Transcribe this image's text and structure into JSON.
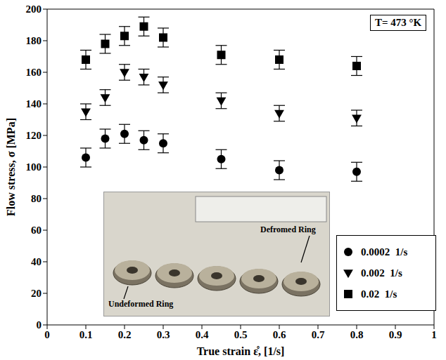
{
  "chart_data": {
    "type": "scatter",
    "x_label": "True strain ε̊, [1/s]",
    "y_label": "Flow stress, σ [MPa]",
    "annotations": [
      {
        "text": "T= 473 °K"
      },
      {
        "text": "Undeformed Ring"
      },
      {
        "text": "Defromed Ring"
      }
    ],
    "x": [
      0.1,
      0.15,
      0.2,
      0.25,
      0.3,
      0.45,
      0.6,
      0.8
    ],
    "series": [
      {
        "name": "0.0002  1/s",
        "marker": "circle",
        "color": "#000000",
        "values": [
          106,
          118,
          121,
          117,
          115,
          105,
          98,
          97
        ],
        "errors": [
          6,
          6,
          6,
          6,
          6,
          6,
          6,
          6
        ]
      },
      {
        "name": "0.002  1/s",
        "marker": "triangle-down",
        "color": "#000000",
        "values": [
          135,
          144,
          160,
          157,
          152,
          142,
          134,
          131
        ],
        "errors": [
          5,
          5,
          5,
          5,
          5,
          5,
          5,
          5
        ]
      },
      {
        "name": "0.02  1/s",
        "marker": "square",
        "color": "#000000",
        "values": [
          168,
          178,
          183,
          189,
          182,
          171,
          168,
          164
        ],
        "errors": [
          6,
          6,
          6,
          6,
          6,
          6,
          6,
          6
        ]
      }
    ],
    "xlim": [
      0,
      1
    ],
    "xticks": [
      0,
      0.1,
      0.2,
      0.3,
      0.4,
      0.5,
      0.6,
      0.7,
      0.8,
      0.9,
      1
    ],
    "ylim": [
      0,
      200
    ],
    "yticks": [
      0,
      20,
      40,
      60,
      80,
      100,
      120,
      140,
      160,
      180,
      200
    ],
    "grid": false,
    "legend": "lower right"
  }
}
